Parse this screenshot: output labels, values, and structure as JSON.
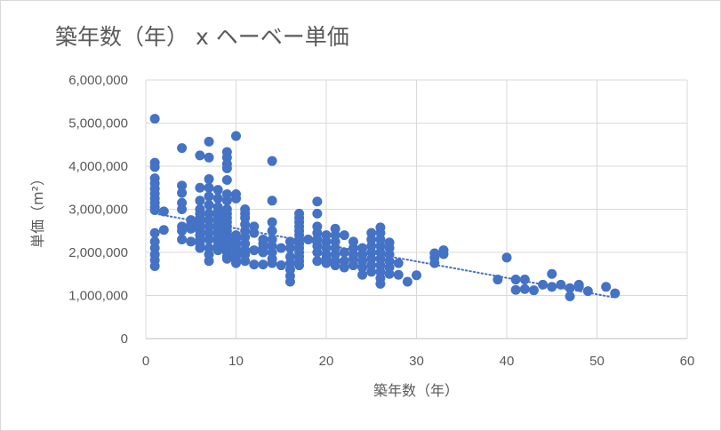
{
  "chart_data": {
    "type": "scatter",
    "title": "築年数（年） x ヘーベー単価",
    "xlabel": "築年数（年）",
    "ylabel": "単価（m²）",
    "xlim": [
      0,
      60
    ],
    "ylim": [
      0,
      6000000
    ],
    "x_ticks": [
      "0",
      "10",
      "20",
      "30",
      "40",
      "50",
      "60"
    ],
    "y_ticks": [
      "0",
      "1,000,000",
      "2,000,000",
      "3,000,000",
      "4,000,000",
      "5,000,000",
      "6,000,000"
    ],
    "grid": true,
    "legend": "none",
    "marker_color": "#4472c4",
    "trendline": {
      "type": "linear",
      "style": "dotted",
      "x": [
        1,
        52
      ],
      "y": [
        2900000,
        950000
      ]
    },
    "series": [
      {
        "points": [
          [
            1,
            5100000
          ],
          [
            1,
            4080000
          ],
          [
            1,
            3980000
          ],
          [
            1,
            3720000
          ],
          [
            1,
            3600000
          ],
          [
            1,
            3480000
          ],
          [
            1,
            3360000
          ],
          [
            1,
            3250000
          ],
          [
            1,
            3150000
          ],
          [
            1,
            3050000
          ],
          [
            1,
            2980000
          ],
          [
            1,
            2450000
          ],
          [
            1,
            2250000
          ],
          [
            1,
            2100000
          ],
          [
            1,
            1950000
          ],
          [
            1,
            1820000
          ],
          [
            1,
            1680000
          ],
          [
            2,
            2950000
          ],
          [
            2,
            2520000
          ],
          [
            4,
            4420000
          ],
          [
            4,
            3550000
          ],
          [
            4,
            3380000
          ],
          [
            4,
            3150000
          ],
          [
            4,
            3000000
          ],
          [
            4,
            2600000
          ],
          [
            4,
            2500000
          ],
          [
            4,
            2300000
          ],
          [
            5,
            2750000
          ],
          [
            5,
            2650000
          ],
          [
            5,
            2550000
          ],
          [
            5,
            2250000
          ],
          [
            6,
            4250000
          ],
          [
            6,
            3500000
          ],
          [
            6,
            3200000
          ],
          [
            6,
            3000000
          ],
          [
            6,
            2900000
          ],
          [
            6,
            2800000
          ],
          [
            6,
            2700000
          ],
          [
            6,
            2600000
          ],
          [
            6,
            2500000
          ],
          [
            6,
            2400000
          ],
          [
            6,
            2300000
          ],
          [
            6,
            2200000
          ],
          [
            6,
            2100000
          ],
          [
            7,
            4570000
          ],
          [
            7,
            4200000
          ],
          [
            7,
            3700000
          ],
          [
            7,
            3500000
          ],
          [
            7,
            3300000
          ],
          [
            7,
            3100000
          ],
          [
            7,
            2900000
          ],
          [
            7,
            2750000
          ],
          [
            7,
            2600000
          ],
          [
            7,
            2450000
          ],
          [
            7,
            2300000
          ],
          [
            7,
            2100000
          ],
          [
            7,
            1950000
          ],
          [
            7,
            1800000
          ],
          [
            8,
            3450000
          ],
          [
            8,
            3250000
          ],
          [
            8,
            3050000
          ],
          [
            8,
            2950000
          ],
          [
            8,
            2850000
          ],
          [
            8,
            2750000
          ],
          [
            8,
            2650000
          ],
          [
            8,
            2550000
          ],
          [
            8,
            2450000
          ],
          [
            8,
            2350000
          ],
          [
            8,
            2250000
          ],
          [
            8,
            2150000
          ],
          [
            8,
            2050000
          ],
          [
            9,
            4330000
          ],
          [
            9,
            4200000
          ],
          [
            9,
            4050000
          ],
          [
            9,
            3950000
          ],
          [
            9,
            3680000
          ],
          [
            9,
            3350000
          ],
          [
            9,
            3200000
          ],
          [
            9,
            3000000
          ],
          [
            9,
            2900000
          ],
          [
            9,
            2800000
          ],
          [
            9,
            2700000
          ],
          [
            9,
            2600000
          ],
          [
            9,
            2500000
          ],
          [
            9,
            2400000
          ],
          [
            9,
            2300000
          ],
          [
            9,
            2200000
          ],
          [
            9,
            2100000
          ],
          [
            9,
            2000000
          ],
          [
            9,
            1900000
          ],
          [
            9,
            1850000
          ],
          [
            10,
            4700000
          ],
          [
            10,
            3350000
          ],
          [
            10,
            3250000
          ],
          [
            10,
            2400000
          ],
          [
            10,
            2300000
          ],
          [
            10,
            2200000
          ],
          [
            10,
            2100000
          ],
          [
            10,
            2000000
          ],
          [
            10,
            1900000
          ],
          [
            10,
            1800000
          ],
          [
            10,
            1750000
          ],
          [
            11,
            3000000
          ],
          [
            11,
            2900000
          ],
          [
            11,
            2800000
          ],
          [
            11,
            2650000
          ],
          [
            11,
            2500000
          ],
          [
            11,
            2350000
          ],
          [
            11,
            2200000
          ],
          [
            11,
            2050000
          ],
          [
            11,
            1950000
          ],
          [
            11,
            1800000
          ],
          [
            12,
            2600000
          ],
          [
            12,
            2450000
          ],
          [
            12,
            2050000
          ],
          [
            12,
            1720000
          ],
          [
            13,
            2300000
          ],
          [
            13,
            2200000
          ],
          [
            13,
            2100000
          ],
          [
            13,
            2000000
          ],
          [
            13,
            1720000
          ],
          [
            14,
            4120000
          ],
          [
            14,
            3200000
          ],
          [
            14,
            2700000
          ],
          [
            14,
            2500000
          ],
          [
            14,
            2300000
          ],
          [
            14,
            2150000
          ],
          [
            14,
            2000000
          ],
          [
            14,
            1850000
          ],
          [
            14,
            1750000
          ],
          [
            15,
            2100000
          ],
          [
            15,
            1700000
          ],
          [
            16,
            2250000
          ],
          [
            16,
            2100000
          ],
          [
            16,
            1900000
          ],
          [
            16,
            1750000
          ],
          [
            16,
            1600000
          ],
          [
            16,
            1450000
          ],
          [
            16,
            1320000
          ],
          [
            17,
            2900000
          ],
          [
            17,
            2800000
          ],
          [
            17,
            2700000
          ],
          [
            17,
            2600000
          ],
          [
            17,
            2500000
          ],
          [
            17,
            2400000
          ],
          [
            17,
            2300000
          ],
          [
            17,
            2200000
          ],
          [
            17,
            2100000
          ],
          [
            17,
            2000000
          ],
          [
            17,
            1900000
          ],
          [
            17,
            1800000
          ],
          [
            17,
            1700000
          ],
          [
            18,
            2300000
          ],
          [
            19,
            3180000
          ],
          [
            19,
            2900000
          ],
          [
            19,
            2600000
          ],
          [
            19,
            2450000
          ],
          [
            19,
            2300000
          ],
          [
            19,
            2150000
          ],
          [
            19,
            2000000
          ],
          [
            19,
            1800000
          ],
          [
            20,
            2400000
          ],
          [
            20,
            2250000
          ],
          [
            20,
            2100000
          ],
          [
            20,
            1950000
          ],
          [
            20,
            1850000
          ],
          [
            20,
            1750000
          ],
          [
            21,
            2550000
          ],
          [
            21,
            2400000
          ],
          [
            21,
            2250000
          ],
          [
            21,
            2100000
          ],
          [
            21,
            1950000
          ],
          [
            21,
            1800000
          ],
          [
            21,
            1700000
          ],
          [
            22,
            2400000
          ],
          [
            22,
            2000000
          ],
          [
            22,
            1800000
          ],
          [
            22,
            1650000
          ],
          [
            23,
            2250000
          ],
          [
            23,
            2100000
          ],
          [
            23,
            1950000
          ],
          [
            23,
            1850000
          ],
          [
            23,
            1700000
          ],
          [
            24,
            2100000
          ],
          [
            24,
            1950000
          ],
          [
            24,
            1800000
          ],
          [
            24,
            1650000
          ],
          [
            24,
            1480000
          ],
          [
            25,
            2450000
          ],
          [
            25,
            2300000
          ],
          [
            25,
            2150000
          ],
          [
            25,
            2000000
          ],
          [
            25,
            1850000
          ],
          [
            25,
            1700000
          ],
          [
            25,
            1550000
          ],
          [
            26,
            2580000
          ],
          [
            26,
            2450000
          ],
          [
            26,
            2300000
          ],
          [
            26,
            2150000
          ],
          [
            26,
            2000000
          ],
          [
            26,
            1850000
          ],
          [
            26,
            1700000
          ],
          [
            26,
            1550000
          ],
          [
            26,
            1400000
          ],
          [
            26,
            1270000
          ],
          [
            27,
            2230000
          ],
          [
            27,
            2100000
          ],
          [
            27,
            1950000
          ],
          [
            27,
            1800000
          ],
          [
            27,
            1650000
          ],
          [
            27,
            1500000
          ],
          [
            28,
            1750000
          ],
          [
            28,
            1480000
          ],
          [
            29,
            1320000
          ],
          [
            30,
            1470000
          ],
          [
            32,
            1980000
          ],
          [
            32,
            1880000
          ],
          [
            32,
            1750000
          ],
          [
            33,
            2050000
          ],
          [
            33,
            1960000
          ],
          [
            39,
            1370000
          ],
          [
            40,
            1880000
          ],
          [
            41,
            1370000
          ],
          [
            41,
            1130000
          ],
          [
            42,
            1370000
          ],
          [
            42,
            1150000
          ],
          [
            43,
            1120000
          ],
          [
            44,
            1250000
          ],
          [
            45,
            1500000
          ],
          [
            45,
            1200000
          ],
          [
            46,
            1250000
          ],
          [
            47,
            1170000
          ],
          [
            47,
            980000
          ],
          [
            48,
            1250000
          ],
          [
            48,
            1200000
          ],
          [
            49,
            1100000
          ],
          [
            51,
            1200000
          ],
          [
            52,
            1050000
          ]
        ]
      }
    ]
  }
}
